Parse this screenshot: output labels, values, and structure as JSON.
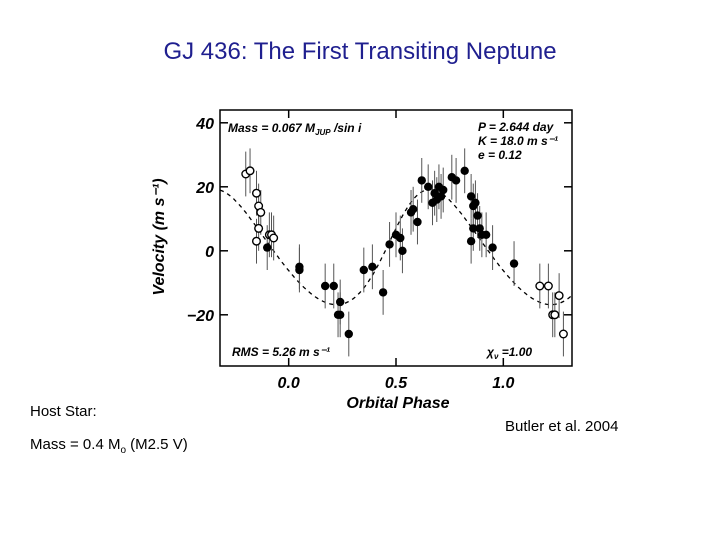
{
  "slide": {
    "title": "GJ 436: The First Transiting Neptune",
    "host_label": "Host Star:",
    "host_mass_prefix": "Mass = 0.4 M",
    "host_mass_symbol": "o",
    "host_mass_suffix": " (M2.5 V)",
    "credit": "Butler et al. 2004"
  },
  "chart_data": {
    "type": "scatter",
    "title": "",
    "xlabel": "Orbital Phase",
    "ylabel": "Velocity  (m s⁻¹)",
    "xlim": [
      -0.32,
      1.32
    ],
    "ylim": [
      -36,
      44
    ],
    "xticks": [
      0.0,
      0.5,
      1.0
    ],
    "xtick_labels": [
      "0.0",
      "0.5",
      "1.0"
    ],
    "yticks": [
      -20,
      0,
      20,
      40
    ],
    "ytick_labels": [
      "−20",
      "0",
      "20",
      "40"
    ],
    "annotations": {
      "mass": "Mass = 0.067 M",
      "mass_sub": "JUP",
      "mass_tail": " /sin i",
      "period": "P = 2.644 day",
      "semi_amplitude": "K = 18.0 m s⁻¹",
      "eccentricity": "e = 0.12",
      "rms": "RMS = 5.26 m s⁻¹",
      "chi": "χ",
      "chi_sub": "ν",
      "chi_value": " =1.00"
    },
    "series": [
      {
        "marker": "filled",
        "points": [
          {
            "x": -0.1,
            "y": 1
          },
          {
            "x": 0.05,
            "y": -6
          },
          {
            "x": 0.05,
            "y": -5
          },
          {
            "x": 0.17,
            "y": -11
          },
          {
            "x": 0.21,
            "y": -11
          },
          {
            "x": 0.23,
            "y": -20
          },
          {
            "x": 0.24,
            "y": -16
          },
          {
            "x": 0.24,
            "y": -20
          },
          {
            "x": 0.28,
            "y": -26
          },
          {
            "x": 0.35,
            "y": -6
          },
          {
            "x": 0.39,
            "y": -5
          },
          {
            "x": 0.44,
            "y": -13
          },
          {
            "x": 0.47,
            "y": 2
          },
          {
            "x": 0.5,
            "y": 5
          },
          {
            "x": 0.52,
            "y": 4
          },
          {
            "x": 0.53,
            "y": 0
          },
          {
            "x": 0.57,
            "y": 12
          },
          {
            "x": 0.58,
            "y": 13
          },
          {
            "x": 0.6,
            "y": 9
          },
          {
            "x": 0.62,
            "y": 22
          },
          {
            "x": 0.65,
            "y": 20
          },
          {
            "x": 0.67,
            "y": 15
          },
          {
            "x": 0.68,
            "y": 18
          },
          {
            "x": 0.69,
            "y": 16
          },
          {
            "x": 0.7,
            "y": 20
          },
          {
            "x": 0.71,
            "y": 17
          },
          {
            "x": 0.72,
            "y": 19
          },
          {
            "x": 0.76,
            "y": 23
          },
          {
            "x": 0.78,
            "y": 22
          },
          {
            "x": 0.82,
            "y": 25
          },
          {
            "x": 0.85,
            "y": 17
          },
          {
            "x": 0.86,
            "y": 14
          },
          {
            "x": 0.87,
            "y": 15
          },
          {
            "x": 0.88,
            "y": 11
          },
          {
            "x": 0.86,
            "y": 7
          },
          {
            "x": 0.85,
            "y": 3
          },
          {
            "x": 0.89,
            "y": 7
          },
          {
            "x": 0.9,
            "y": 5
          },
          {
            "x": 0.92,
            "y": 5
          },
          {
            "x": 0.95,
            "y": 1
          },
          {
            "x": 1.05,
            "y": -4
          }
        ]
      },
      {
        "marker": "open",
        "points": [
          {
            "x": -0.2,
            "y": 24
          },
          {
            "x": -0.18,
            "y": 25
          },
          {
            "x": -0.15,
            "y": 18
          },
          {
            "x": -0.14,
            "y": 14
          },
          {
            "x": -0.13,
            "y": 12
          },
          {
            "x": -0.14,
            "y": 7
          },
          {
            "x": -0.15,
            "y": 3
          },
          {
            "x": -0.09,
            "y": 5
          },
          {
            "x": -0.08,
            "y": 5
          },
          {
            "x": -0.07,
            "y": 4
          },
          {
            "x": 1.17,
            "y": -11
          },
          {
            "x": 1.21,
            "y": -11
          },
          {
            "x": 1.23,
            "y": -20
          },
          {
            "x": 1.24,
            "y": -20
          },
          {
            "x": 1.26,
            "y": -14
          },
          {
            "x": 1.28,
            "y": -26
          }
        ]
      }
    ],
    "model_curve": {
      "K": 18.0,
      "e": 0.12,
      "style": "dashed"
    }
  }
}
